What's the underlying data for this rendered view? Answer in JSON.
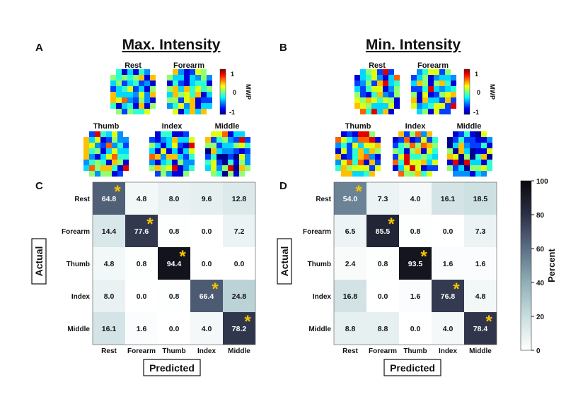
{
  "panels": {
    "a": {
      "letter": "A",
      "title": "Max. Intensity"
    },
    "b": {
      "letter": "B",
      "title": "Min. Intensity"
    },
    "c": {
      "letter": "C"
    },
    "d": {
      "letter": "D"
    }
  },
  "heatmap_labels": [
    "Rest",
    "Forearm",
    "Thumb",
    "Index",
    "Middle"
  ],
  "mwp_colorbar": {
    "label": "MWP",
    "ticks": [
      "1",
      "0",
      "-1"
    ]
  },
  "percent_colorbar": {
    "label": "Percent",
    "ticks": [
      "100",
      "80",
      "60",
      "40",
      "20",
      "0"
    ]
  },
  "colors": {
    "star": "#f5c400",
    "cm_low": "#ffffff",
    "cm_mid": "#9fc3c7",
    "cm_high": "#0d0d12"
  },
  "chart_data": [
    {
      "id": "C",
      "type": "heatmap",
      "title": "",
      "xlabel": "Predicted",
      "ylabel": "Actual",
      "rows": [
        "Rest",
        "Forearm",
        "Thumb",
        "Index",
        "Middle"
      ],
      "cols": [
        "Rest",
        "Forearm",
        "Thumb",
        "Index",
        "Middle"
      ],
      "labels": [
        [
          "64.8",
          "4.8",
          "8.0",
          "9.6",
          "12.8"
        ],
        [
          "14.4",
          "77.6",
          "0.8",
          "0.0",
          "7.2"
        ],
        [
          "4.8",
          "0.8",
          "94.4",
          "0.0",
          "0.0"
        ],
        [
          "8.0",
          "0.0",
          "0.8",
          "66.4",
          "24.8"
        ],
        [
          "16.1",
          "1.6",
          "0.0",
          "4.0",
          "78.2"
        ]
      ],
      "values": [
        [
          64.8,
          4.8,
          8.0,
          9.6,
          12.8
        ],
        [
          14.4,
          77.6,
          0.8,
          0.0,
          7.2
        ],
        [
          4.8,
          0.8,
          94.4,
          0.0,
          0.0
        ],
        [
          8.0,
          0.0,
          0.8,
          66.4,
          24.8
        ],
        [
          16.1,
          1.6,
          0.0,
          4.0,
          78.2
        ]
      ],
      "significant_marker": "*",
      "zlim": [
        0,
        100
      ],
      "colorbar_label": "Percent"
    },
    {
      "id": "D",
      "type": "heatmap",
      "title": "",
      "xlabel": "Predicted",
      "ylabel": "Actual",
      "rows": [
        "Rest",
        "Forearm",
        "Thumb",
        "Index",
        "Middle"
      ],
      "cols": [
        "Rest",
        "Forearm",
        "Thumb",
        "Index",
        "Middle"
      ],
      "labels": [
        [
          "54.0",
          "7.3",
          "4.0",
          "16.1",
          "18.5"
        ],
        [
          "6.5",
          "85.5",
          "0.8",
          "0.0",
          "7.3"
        ],
        [
          "2.4",
          "0.8",
          "93.5",
          "1.6",
          "1.6"
        ],
        [
          "16.8",
          "0.0",
          "1.6",
          "76.8",
          "4.8"
        ],
        [
          "8.8",
          "8.8",
          "0.0",
          "4.0",
          "78.4"
        ]
      ],
      "values": [
        [
          54.0,
          7.3,
          4.0,
          16.1,
          18.5
        ],
        [
          6.5,
          85.5,
          0.8,
          0.0,
          7.3
        ],
        [
          2.4,
          0.8,
          93.5,
          1.6,
          1.6
        ],
        [
          16.8,
          0.0,
          1.6,
          76.8,
          4.8
        ],
        [
          8.8,
          8.8,
          0.0,
          4.0,
          78.4
        ]
      ],
      "significant_marker": "*",
      "zlim": [
        0,
        100
      ],
      "colorbar_label": "Percent"
    }
  ]
}
